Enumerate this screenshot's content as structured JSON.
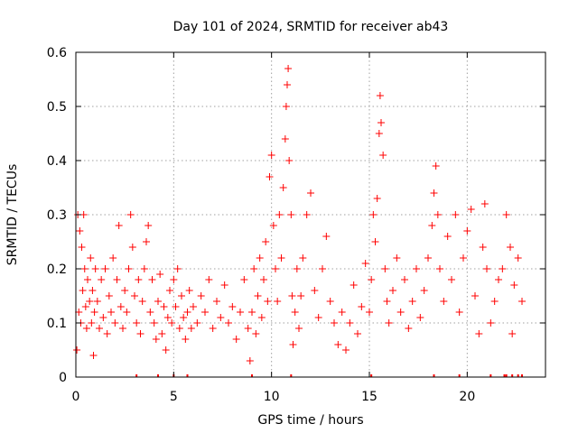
{
  "chart_data": {
    "type": "scatter",
    "title": "Day 101 of 2024, SRMTID for receiver ab43",
    "xlabel": "GPS time / hours",
    "ylabel": "SRMTID / TECUs",
    "xlim": [
      0,
      24
    ],
    "ylim": [
      0,
      0.6
    ],
    "xticks": [
      0,
      5,
      10,
      15,
      20
    ],
    "xtick_labels": [
      "0",
      "5",
      "10",
      "15",
      "20"
    ],
    "yticks": [
      0,
      0.1,
      0.2,
      0.3,
      0.4,
      0.5,
      0.6
    ],
    "ytick_labels": [
      "0",
      "0.1",
      "0.2",
      "0.3",
      "0.4",
      "0.5",
      "0.6"
    ],
    "grid": true,
    "marker": "+",
    "color": "#ff0000",
    "series": [
      {
        "name": "SRMTID",
        "points": [
          [
            0.05,
            0.05
          ],
          [
            0.1,
            0.3
          ],
          [
            0.15,
            0.12
          ],
          [
            0.2,
            0.27
          ],
          [
            0.25,
            0.1
          ],
          [
            0.3,
            0.24
          ],
          [
            0.35,
            0.16
          ],
          [
            0.4,
            0.3
          ],
          [
            0.45,
            0.2
          ],
          [
            0.5,
            0.13
          ],
          [
            0.55,
            0.09
          ],
          [
            0.6,
            0.18
          ],
          [
            0.7,
            0.14
          ],
          [
            0.75,
            0.22
          ],
          [
            0.8,
            0.1
          ],
          [
            0.85,
            0.16
          ],
          [
            0.9,
            0.04
          ],
          [
            0.95,
            0.12
          ],
          [
            1.0,
            0.2
          ],
          [
            1.1,
            0.14
          ],
          [
            1.2,
            0.09
          ],
          [
            1.3,
            0.18
          ],
          [
            1.4,
            0.11
          ],
          [
            1.5,
            0.2
          ],
          [
            1.6,
            0.08
          ],
          [
            1.7,
            0.15
          ],
          [
            1.8,
            0.12
          ],
          [
            1.9,
            0.22
          ],
          [
            2.0,
            0.1
          ],
          [
            2.1,
            0.18
          ],
          [
            2.2,
            0.28
          ],
          [
            2.3,
            0.13
          ],
          [
            2.4,
            0.09
          ],
          [
            2.5,
            0.16
          ],
          [
            2.6,
            0.12
          ],
          [
            2.7,
            0.2
          ],
          [
            2.8,
            0.3
          ],
          [
            2.9,
            0.24
          ],
          [
            3.0,
            0.15
          ],
          [
            3.1,
            0.1
          ],
          [
            3.2,
            0.18
          ],
          [
            3.3,
            0.08
          ],
          [
            3.4,
            0.14
          ],
          [
            3.5,
            0.2
          ],
          [
            3.6,
            0.25
          ],
          [
            3.7,
            0.28
          ],
          [
            3.8,
            0.12
          ],
          [
            3.9,
            0.18
          ],
          [
            4.0,
            0.1
          ],
          [
            4.1,
            0.07
          ],
          [
            4.2,
            0.14
          ],
          [
            4.3,
            0.19
          ],
          [
            4.4,
            0.08
          ],
          [
            4.5,
            0.13
          ],
          [
            4.6,
            0.05
          ],
          [
            4.7,
            0.11
          ],
          [
            4.8,
            0.16
          ],
          [
            4.9,
            0.1
          ],
          [
            5.0,
            0.18
          ],
          [
            5.1,
            0.13
          ],
          [
            5.2,
            0.2
          ],
          [
            5.3,
            0.09
          ],
          [
            5.4,
            0.15
          ],
          [
            5.5,
            0.11
          ],
          [
            5.6,
            0.07
          ],
          [
            5.7,
            0.12
          ],
          [
            5.8,
            0.16
          ],
          [
            5.9,
            0.09
          ],
          [
            6.0,
            0.13
          ],
          [
            6.2,
            0.1
          ],
          [
            6.4,
            0.15
          ],
          [
            6.6,
            0.12
          ],
          [
            6.8,
            0.18
          ],
          [
            7.0,
            0.09
          ],
          [
            7.2,
            0.14
          ],
          [
            7.4,
            0.11
          ],
          [
            7.6,
            0.17
          ],
          [
            7.8,
            0.1
          ],
          [
            8.0,
            0.13
          ],
          [
            8.2,
            0.07
          ],
          [
            8.4,
            0.12
          ],
          [
            8.6,
            0.18
          ],
          [
            8.8,
            0.09
          ],
          [
            8.9,
            0.03
          ],
          [
            9.0,
            0.12
          ],
          [
            9.1,
            0.2
          ],
          [
            9.2,
            0.08
          ],
          [
            9.3,
            0.15
          ],
          [
            9.4,
            0.22
          ],
          [
            9.5,
            0.11
          ],
          [
            9.6,
            0.18
          ],
          [
            9.7,
            0.25
          ],
          [
            9.8,
            0.14
          ],
          [
            9.9,
            0.37
          ],
          [
            10.0,
            0.41
          ],
          [
            10.1,
            0.28
          ],
          [
            10.2,
            0.2
          ],
          [
            10.3,
            0.14
          ],
          [
            10.4,
            0.3
          ],
          [
            10.5,
            0.22
          ],
          [
            10.6,
            0.35
          ],
          [
            10.7,
            0.44
          ],
          [
            10.75,
            0.5
          ],
          [
            10.8,
            0.54
          ],
          [
            10.85,
            0.57
          ],
          [
            10.9,
            0.4
          ],
          [
            11.0,
            0.3
          ],
          [
            11.05,
            0.15
          ],
          [
            11.1,
            0.06
          ],
          [
            11.2,
            0.12
          ],
          [
            11.3,
            0.2
          ],
          [
            11.4,
            0.09
          ],
          [
            11.5,
            0.15
          ],
          [
            11.6,
            0.22
          ],
          [
            11.8,
            0.3
          ],
          [
            12.0,
            0.34
          ],
          [
            12.2,
            0.16
          ],
          [
            12.4,
            0.11
          ],
          [
            12.6,
            0.2
          ],
          [
            12.8,
            0.26
          ],
          [
            13.0,
            0.14
          ],
          [
            13.2,
            0.1
          ],
          [
            13.4,
            0.06
          ],
          [
            13.6,
            0.12
          ],
          [
            13.8,
            0.05
          ],
          [
            14.0,
            0.1
          ],
          [
            14.2,
            0.17
          ],
          [
            14.4,
            0.08
          ],
          [
            14.6,
            0.13
          ],
          [
            14.8,
            0.21
          ],
          [
            15.0,
            0.12
          ],
          [
            15.1,
            0.18
          ],
          [
            15.2,
            0.3
          ],
          [
            15.3,
            0.25
          ],
          [
            15.4,
            0.33
          ],
          [
            15.5,
            0.45
          ],
          [
            15.55,
            0.52
          ],
          [
            15.6,
            0.47
          ],
          [
            15.7,
            0.41
          ],
          [
            15.8,
            0.2
          ],
          [
            15.9,
            0.14
          ],
          [
            16.0,
            0.1
          ],
          [
            16.2,
            0.16
          ],
          [
            16.4,
            0.22
          ],
          [
            16.6,
            0.12
          ],
          [
            16.8,
            0.18
          ],
          [
            17.0,
            0.09
          ],
          [
            17.2,
            0.14
          ],
          [
            17.4,
            0.2
          ],
          [
            17.6,
            0.11
          ],
          [
            17.8,
            0.16
          ],
          [
            18.0,
            0.22
          ],
          [
            18.2,
            0.28
          ],
          [
            18.3,
            0.34
          ],
          [
            18.4,
            0.39
          ],
          [
            18.5,
            0.3
          ],
          [
            18.6,
            0.2
          ],
          [
            18.8,
            0.14
          ],
          [
            19.0,
            0.26
          ],
          [
            19.2,
            0.18
          ],
          [
            19.4,
            0.3
          ],
          [
            19.6,
            0.12
          ],
          [
            19.8,
            0.22
          ],
          [
            20.0,
            0.27
          ],
          [
            20.2,
            0.31
          ],
          [
            20.4,
            0.15
          ],
          [
            20.6,
            0.08
          ],
          [
            20.8,
            0.24
          ],
          [
            20.9,
            0.32
          ],
          [
            21.0,
            0.2
          ],
          [
            21.2,
            0.1
          ],
          [
            21.4,
            0.14
          ],
          [
            21.6,
            0.18
          ],
          [
            21.8,
            0.2
          ],
          [
            22.0,
            0.3
          ],
          [
            22.2,
            0.24
          ],
          [
            22.3,
            0.08
          ],
          [
            22.4,
            0.17
          ],
          [
            22.6,
            0.22
          ],
          [
            22.8,
            0.14
          ]
        ]
      }
    ],
    "zero_markers": [
      3.1,
      4.2,
      5.0,
      5.7,
      9.0,
      11.0,
      15.1,
      18.3,
      19.6,
      21.2,
      21.9,
      22.0,
      22.3,
      22.6,
      22.8
    ]
  }
}
